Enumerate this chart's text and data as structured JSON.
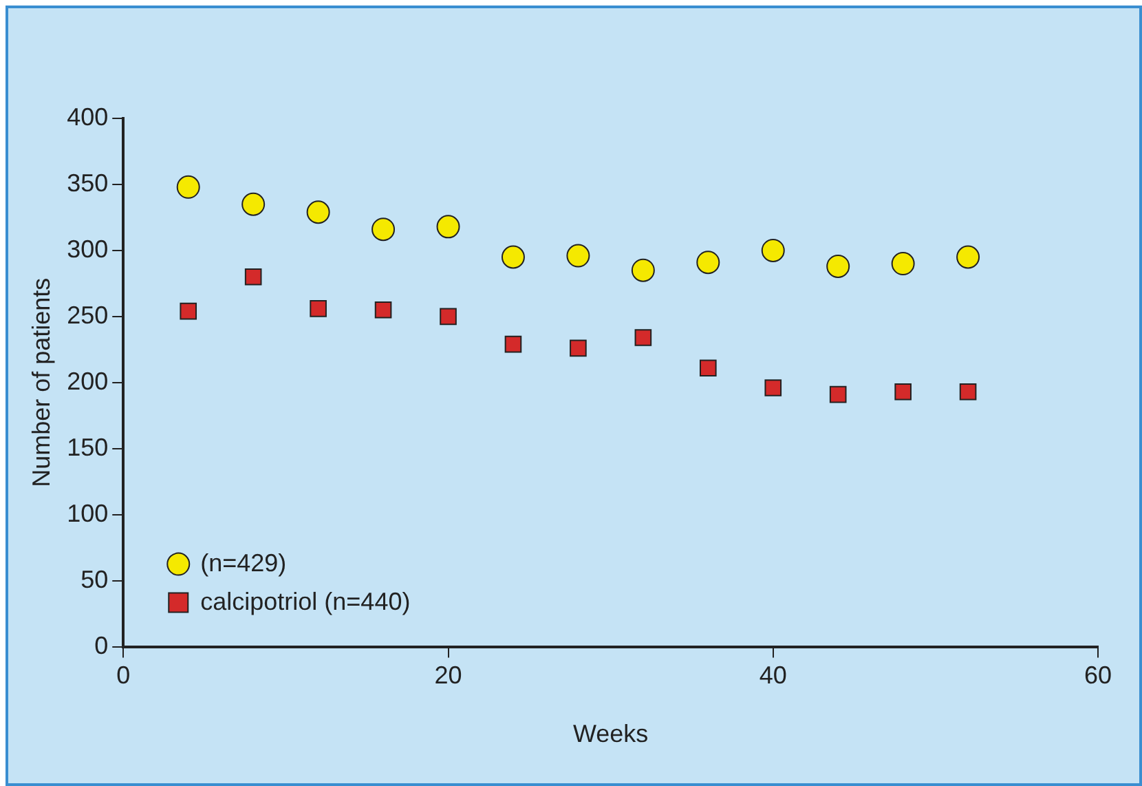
{
  "chart_data": {
    "type": "scatter",
    "xlabel": "Weeks",
    "ylabel": "Number of patients",
    "xlim": [
      0,
      60
    ],
    "xticks": [
      0,
      20,
      40,
      60
    ],
    "ylim": [
      0,
      400
    ],
    "yticks": [
      0,
      50,
      100,
      150,
      200,
      250,
      300,
      350,
      400
    ],
    "grid": false,
    "legend": "bottom left",
    "series": [
      {
        "name": "(n=429)",
        "color": "#f5e900",
        "marker": "circle",
        "x": [
          4,
          8,
          12,
          16,
          20,
          24,
          28,
          32,
          36,
          40,
          44,
          48,
          52
        ],
        "values": [
          348,
          335,
          329,
          316,
          318,
          295,
          296,
          285,
          291,
          300,
          288,
          290,
          295
        ]
      },
      {
        "name": "calcipotriol (n=440)",
        "color": "#d42a2a",
        "marker": "square",
        "x": [
          4,
          8,
          12,
          16,
          20,
          24,
          28,
          32,
          36,
          40,
          44,
          48,
          52
        ],
        "values": [
          254,
          280,
          256,
          255,
          250,
          229,
          226,
          234,
          211,
          196,
          191,
          193,
          193
        ]
      }
    ]
  }
}
